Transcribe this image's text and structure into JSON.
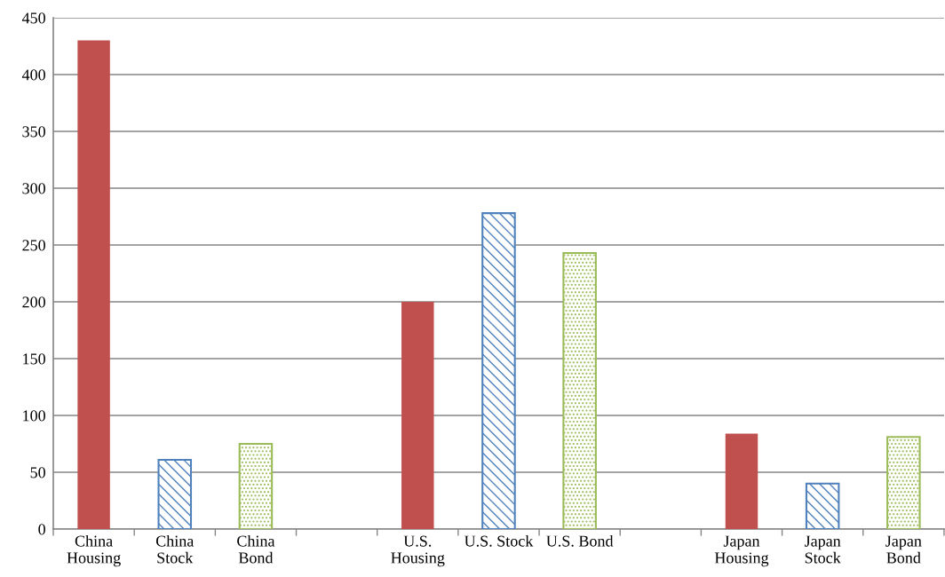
{
  "chart_data": {
    "type": "bar",
    "categories": [
      "China\nHousing",
      "China\nStock",
      "China\nBond",
      null,
      "U.S.\nHousing",
      "U.S. Stock",
      "U.S. Bond",
      null,
      "Japan\nHousing",
      "Japan\nStock",
      "Japan\nBond"
    ],
    "series": [
      {
        "color": "#c0504d",
        "values": [
          430,
          null,
          null,
          null,
          200,
          null,
          null,
          null,
          84,
          null,
          null
        ]
      },
      {
        "color": "#4f81bd",
        "values": [
          null,
          61,
          null,
          null,
          null,
          278,
          null,
          null,
          null,
          40,
          null
        ]
      },
      {
        "color": "#9bbb59",
        "values": [
          null,
          null,
          75,
          null,
          null,
          null,
          243,
          null,
          null,
          null,
          81
        ]
      }
    ],
    "ylim": [
      0,
      450
    ],
    "yticks": [
      0,
      50,
      100,
      150,
      200,
      250,
      300,
      350,
      400,
      450
    ],
    "grid": "y"
  }
}
